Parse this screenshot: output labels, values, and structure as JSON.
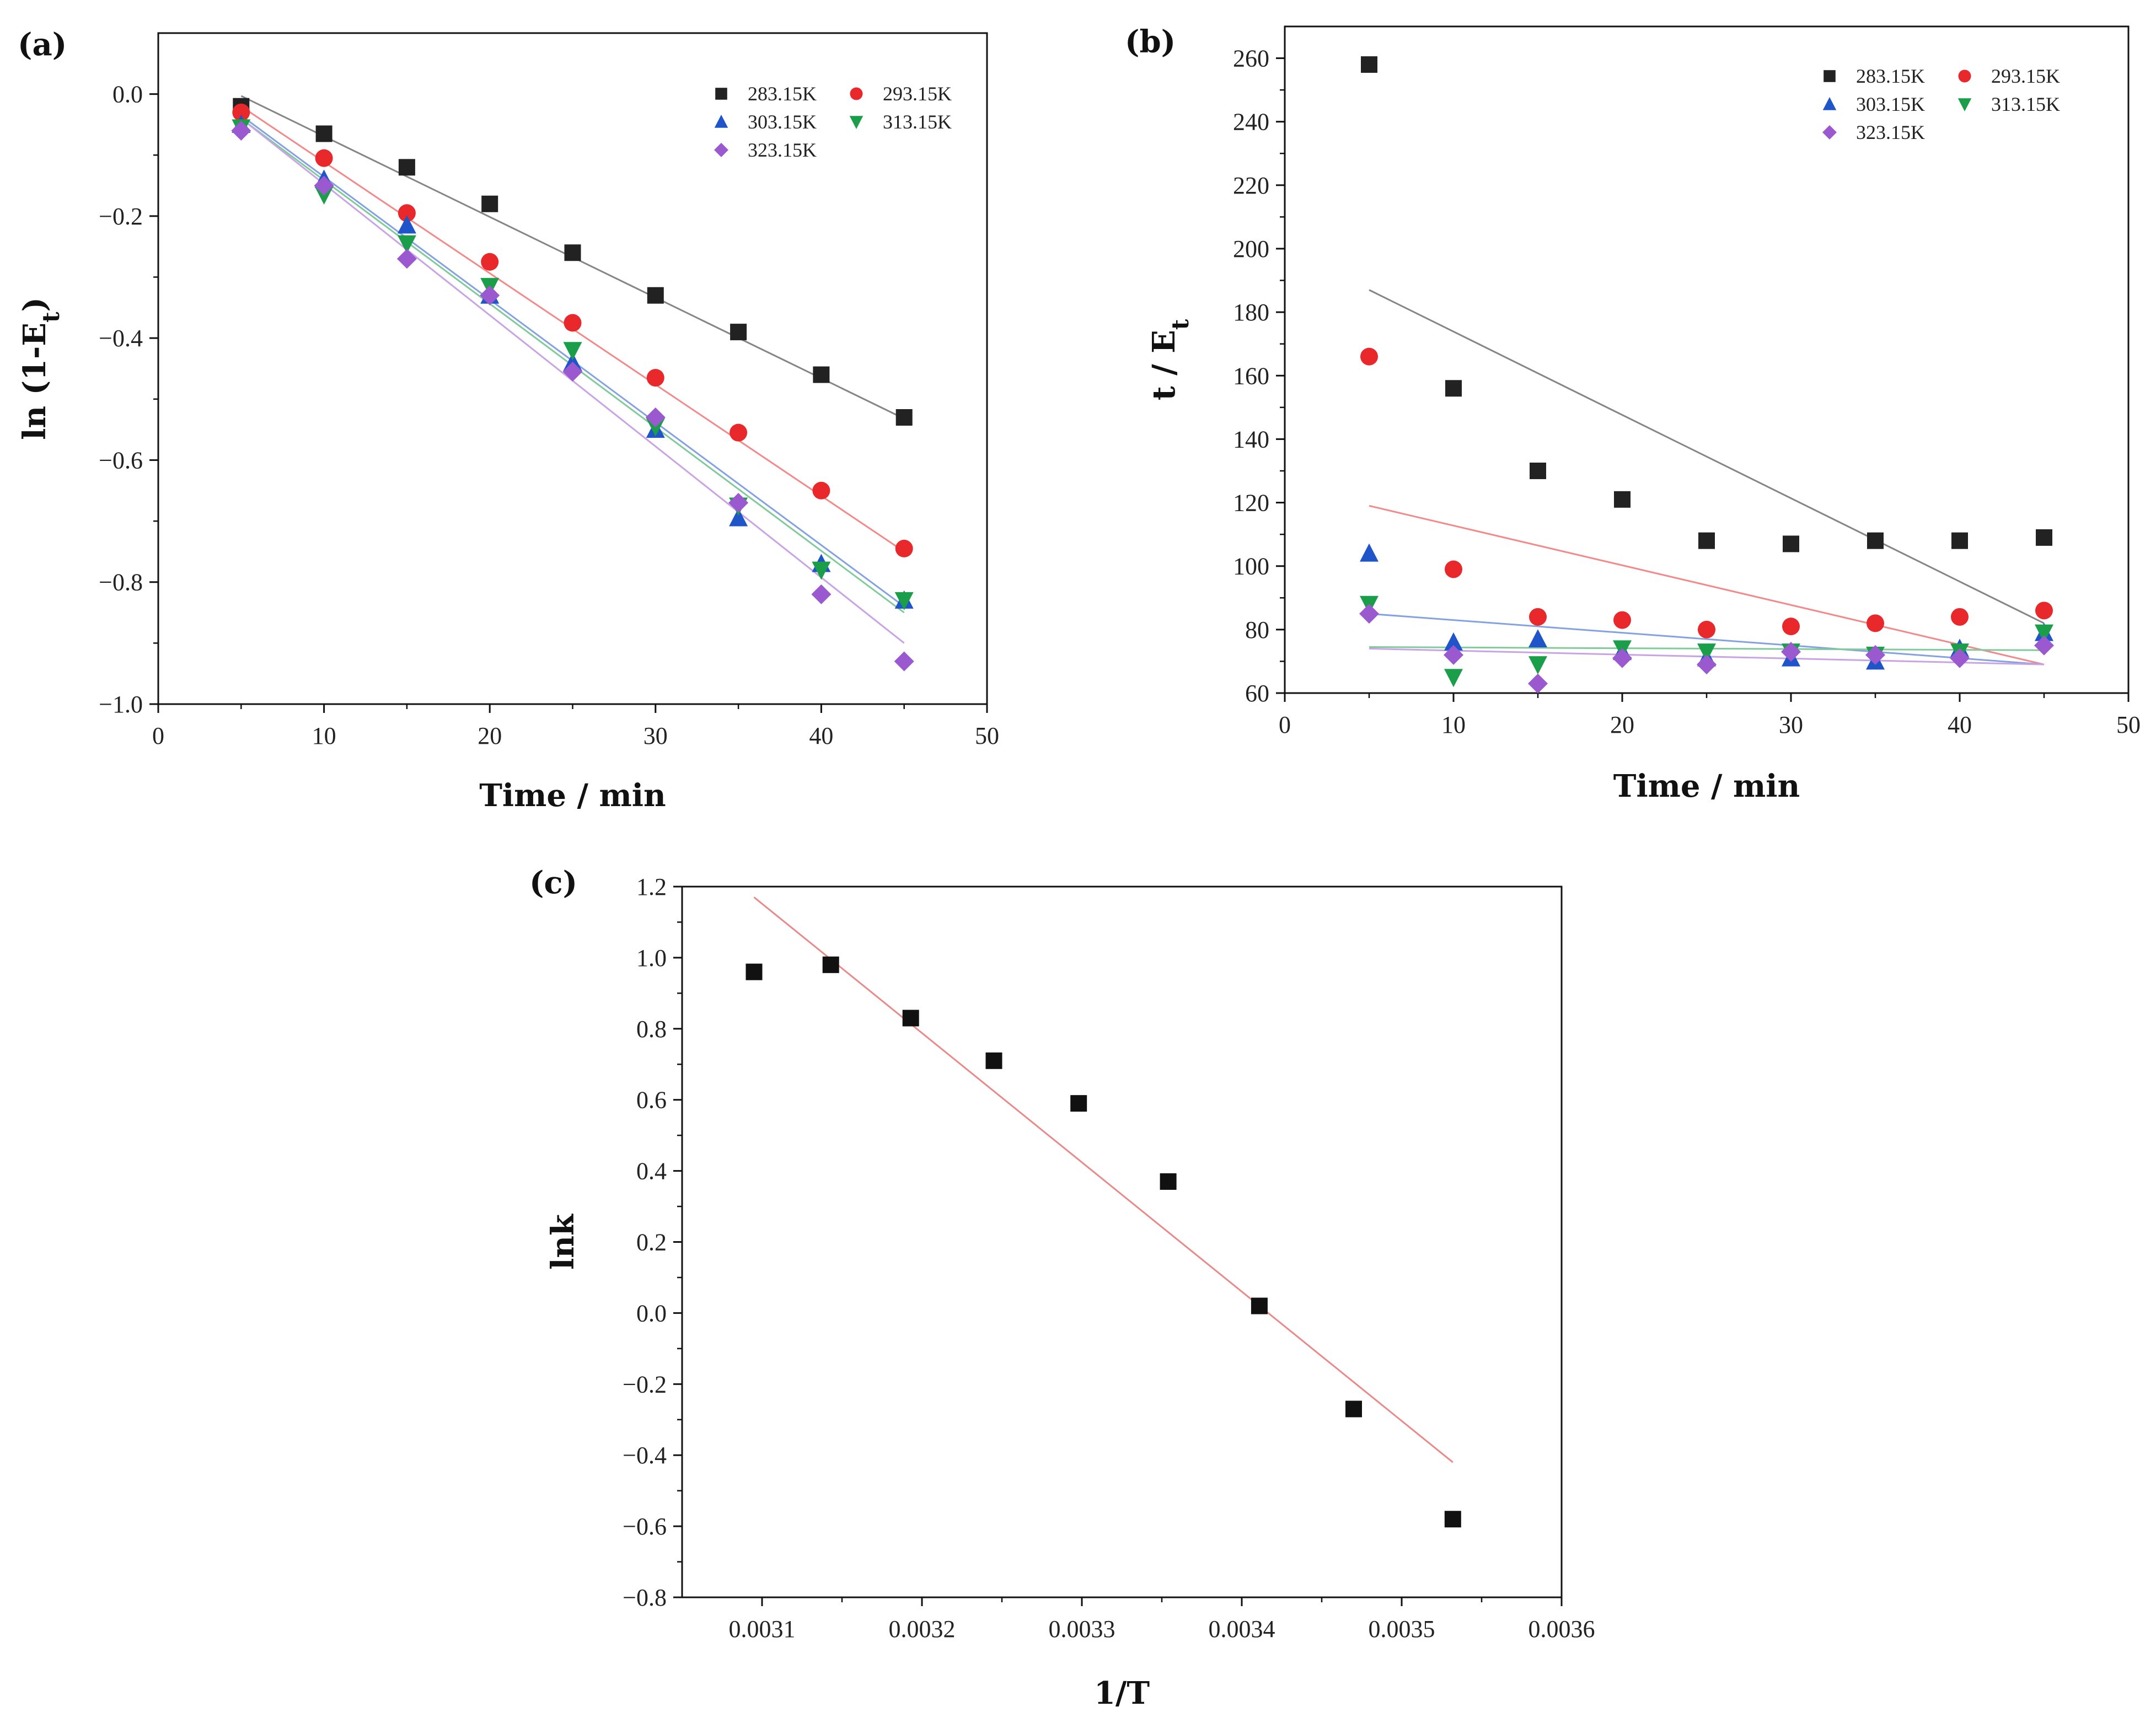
{
  "colors": {
    "283.15K": "#222222",
    "293.15K": "#e8282a",
    "303.15K": "#1f55c8",
    "313.15K": "#1a9e4a",
    "323.15K": "#9b59d0",
    "fit_lnk": "#e88a8a"
  },
  "chart_data": [
    {
      "panel": "(a)",
      "type": "scatter",
      "xlabel": "Time / min",
      "ylabel": "ln (1-E",
      "ylabel_sub": "t",
      "ylabel_close": ")",
      "xlim": [
        0,
        50
      ],
      "ylim": [
        -1.0,
        0.1
      ],
      "xticks": [
        0,
        10,
        20,
        30,
        40,
        50
      ],
      "xtick_labels": [
        "0",
        "10",
        "20",
        "30",
        "40",
        "50"
      ],
      "yticks": [
        0.0,
        -0.2,
        -0.4,
        -0.6,
        -0.8,
        -1.0
      ],
      "ytick_labels": [
        "0.0",
        "−0.2",
        "−0.4",
        "−0.6",
        "−0.8",
        "−1.0"
      ],
      "legend_position": "top-right",
      "x": [
        5,
        10,
        15,
        20,
        25,
        30,
        35,
        40,
        45
      ],
      "series": [
        {
          "name": "283.15K",
          "marker": "square",
          "values": [
            -0.02,
            -0.065,
            -0.12,
            -0.18,
            -0.26,
            -0.33,
            -0.39,
            -0.46,
            -0.53
          ],
          "fit": [
            -0.003,
            -0.532
          ]
        },
        {
          "name": "293.15K",
          "marker": "circle",
          "values": [
            -0.03,
            -0.105,
            -0.195,
            -0.275,
            -0.375,
            -0.465,
            -0.555,
            -0.65,
            -0.745
          ],
          "fit": [
            -0.02,
            -0.75
          ]
        },
        {
          "name": "303.15K",
          "marker": "triangle-up",
          "values": [
            -0.05,
            -0.14,
            -0.215,
            -0.33,
            -0.44,
            -0.55,
            -0.695,
            -0.77,
            -0.83
          ],
          "fit": [
            -0.035,
            -0.84
          ]
        },
        {
          "name": "313.15K",
          "marker": "triangle-down",
          "values": [
            -0.055,
            -0.165,
            -0.245,
            -0.315,
            -0.42,
            -0.545,
            -0.675,
            -0.78,
            -0.83
          ],
          "fit": [
            -0.04,
            -0.85
          ]
        },
        {
          "name": "323.15K",
          "marker": "diamond",
          "values": [
            -0.06,
            -0.15,
            -0.27,
            -0.33,
            -0.455,
            -0.53,
            -0.67,
            -0.82,
            -0.93
          ],
          "fit": [
            -0.04,
            -0.9
          ]
        }
      ]
    },
    {
      "panel": "(b)",
      "type": "scatter",
      "xlabel": "Time / min",
      "ylabel": "t / E",
      "ylabel_sub": "t",
      "xlim": [
        0,
        50
      ],
      "ylim": [
        60,
        270
      ],
      "xticks": [
        0,
        10,
        20,
        30,
        40,
        50
      ],
      "xtick_labels": [
        "0",
        "10",
        "20",
        "30",
        "40",
        "50"
      ],
      "yticks": [
        60,
        80,
        100,
        120,
        140,
        160,
        180,
        200,
        220,
        240,
        260
      ],
      "ytick_labels": [
        "60",
        "80",
        "100",
        "120",
        "140",
        "160",
        "180",
        "200",
        "220",
        "240",
        "260"
      ],
      "legend_position": "top-right",
      "x": [
        5,
        10,
        15,
        20,
        25,
        30,
        35,
        40,
        45
      ],
      "series": [
        {
          "name": "283.15K",
          "marker": "square",
          "values": [
            258,
            156,
            130,
            121,
            108,
            107,
            108,
            108,
            109
          ],
          "fit": [
            187,
            82
          ]
        },
        {
          "name": "293.15K",
          "marker": "circle",
          "values": [
            166,
            99,
            84,
            83,
            80,
            81,
            82,
            84,
            86
          ],
          "fit": [
            119,
            69
          ]
        },
        {
          "name": "303.15K",
          "marker": "triangle-up",
          "values": [
            104,
            76,
            77,
            73,
            71,
            71,
            70,
            74,
            79
          ],
          "fit": [
            85,
            69
          ]
        },
        {
          "name": "313.15K",
          "marker": "triangle-down",
          "values": [
            88,
            65,
            69,
            74,
            73,
            73,
            72,
            73,
            79
          ],
          "fit": [
            74.5,
            73.5
          ]
        },
        {
          "name": "323.15K",
          "marker": "diamond",
          "values": [
            85,
            72,
            63,
            71,
            69,
            73,
            72,
            71,
            75
          ],
          "fit": [
            74,
            69
          ]
        }
      ]
    },
    {
      "panel": "(c)",
      "type": "scatter",
      "xlabel": "1/T",
      "ylabel": "lnk",
      "xlim": [
        0.00305,
        0.0036
      ],
      "ylim": [
        -0.8,
        1.2
      ],
      "xticks": [
        0.0031,
        0.0032,
        0.0033,
        0.0034,
        0.0035,
        0.0036
      ],
      "xtick_labels": [
        "0.0031",
        "0.0032",
        "0.0033",
        "0.0034",
        "0.0035",
        "0.0036"
      ],
      "yticks": [
        1.2,
        1.0,
        0.8,
        0.6,
        0.4,
        0.2,
        0.0,
        -0.2,
        -0.4,
        -0.6,
        -0.8
      ],
      "ytick_labels": [
        "1.2",
        "1.0",
        "0.8",
        "0.6",
        "0.4",
        "0.2",
        "0.0",
        "−0.2",
        "−0.4",
        "−0.6",
        "−0.8"
      ],
      "points": {
        "x": [
          0.003095,
          0.003143,
          0.003193,
          0.003245,
          0.003298,
          0.003354,
          0.003411,
          0.00347,
          0.003532
        ],
        "y": [
          0.96,
          0.98,
          0.83,
          0.71,
          0.59,
          0.37,
          0.02,
          -0.27,
          -0.58
        ]
      },
      "fit": {
        "x": [
          0.003095,
          0.003532
        ],
        "y": [
          1.17,
          -0.42
        ]
      }
    }
  ]
}
